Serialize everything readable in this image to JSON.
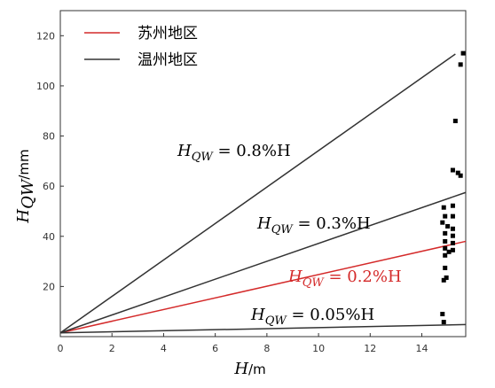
{
  "chart_data": {
    "type": "line",
    "xlabel": {
      "main": "H",
      "unit": "/m"
    },
    "ylabel": {
      "main": "H",
      "sub": "QW",
      "unit": "/mm"
    },
    "xlim": [
      0,
      15.7
    ],
    "ylim": [
      0,
      130
    ],
    "xticks": [
      0,
      2,
      4,
      6,
      8,
      10,
      12,
      14
    ],
    "yticks": [
      20,
      40,
      60,
      80,
      100,
      120
    ],
    "legend": "upper left",
    "series": [
      {
        "name": "苏州地区",
        "color": "#d42a2a",
        "x": [
          0,
          15.7
        ],
        "values": [
          1.5,
          38
        ]
      },
      {
        "name": "温州地区",
        "color": "#333333",
        "x": [
          0,
          15.3
        ],
        "values": [
          1.5,
          112.7
        ]
      },
      {
        "color": "#333333",
        "x": [
          0,
          15.7
        ],
        "values": [
          1.5,
          57.5
        ]
      },
      {
        "color": "#333333",
        "x": [
          0,
          15.7
        ],
        "values": [
          1.5,
          4.8
        ]
      },
      {
        "type": "scatter",
        "color": "#000000",
        "x": [
          15.6,
          15.5,
          15.3,
          15.2,
          15.4,
          15.5,
          14.85,
          15.2,
          14.9,
          15.2,
          14.8,
          15.0,
          15.2,
          14.9,
          15.2,
          14.9,
          15.2,
          14.9,
          15.05,
          15.2,
          14.9,
          14.9,
          14.95,
          14.85,
          14.8,
          14.85
        ],
        "values": [
          113,
          108.5,
          86,
          66.4,
          65.3,
          64.2,
          51.5,
          52.2,
          48,
          48,
          45.5,
          44,
          43,
          41.2,
          40.2,
          38,
          37.3,
          35.2,
          33.8,
          34.5,
          32.4,
          27.4,
          23.5,
          22.5,
          9,
          5.8
        ]
      }
    ],
    "annotations": [
      {
        "main": "H",
        "sub": "QW",
        "rest": " = 0.8%H",
        "color": "#000000"
      },
      {
        "main": "H",
        "sub": "QW",
        "rest": " = 0.3%H",
        "color": "#000000"
      },
      {
        "main": "H",
        "sub": "QW",
        "rest": " = 0.2%H",
        "color": "#d42a2a"
      },
      {
        "main": "H",
        "sub": "QW",
        "rest": " = 0.05%H",
        "color": "#000000"
      }
    ]
  }
}
